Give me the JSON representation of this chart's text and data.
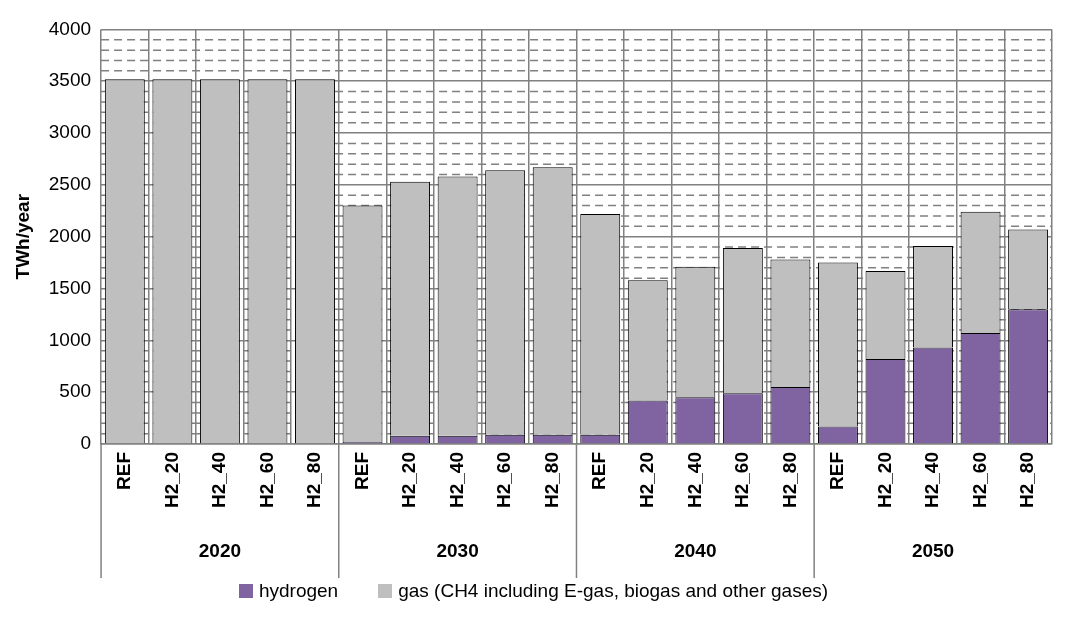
{
  "chart_data": {
    "type": "bar",
    "ylabel": "TWh/year",
    "stacked": true,
    "grid": true,
    "legend": "bottom",
    "categories": [
      "REF",
      "H2_20",
      "H2_40",
      "H2_60",
      "H2_80",
      "REF",
      "H2_20",
      "H2_40",
      "H2_60",
      "H2_80",
      "REF",
      "H2_20",
      "H2_40",
      "H2_60",
      "H2_80",
      "REF",
      "H2_20",
      "H2_40",
      "H2_60",
      "H2_80"
    ],
    "series": [
      {
        "name": "hydrogen",
        "color": "#8064a2",
        "values": [
          0,
          0,
          0,
          0,
          0,
          20,
          80,
          80,
          90,
          90,
          90,
          420,
          450,
          490,
          550,
          170,
          820,
          930,
          1070,
          1300
        ]
      },
      {
        "name": "gas (CH4 including E-gas, biogas and other gases)",
        "color": "#bfbfbf",
        "values": [
          3520,
          3520,
          3520,
          3520,
          3520,
          2280,
          2450,
          2500,
          2550,
          2580,
          2130,
          1160,
          1260,
          1400,
          1230,
          1580,
          850,
          980,
          1170,
          770
        ]
      }
    ],
    "ylim": [
      0,
      4000
    ],
    "yticks": [
      0,
      500,
      1000,
      1500,
      2000,
      2500,
      3000,
      3500,
      4000
    ],
    "annotations": [
      "2020",
      "2030",
      "2040",
      "2050"
    ]
  }
}
